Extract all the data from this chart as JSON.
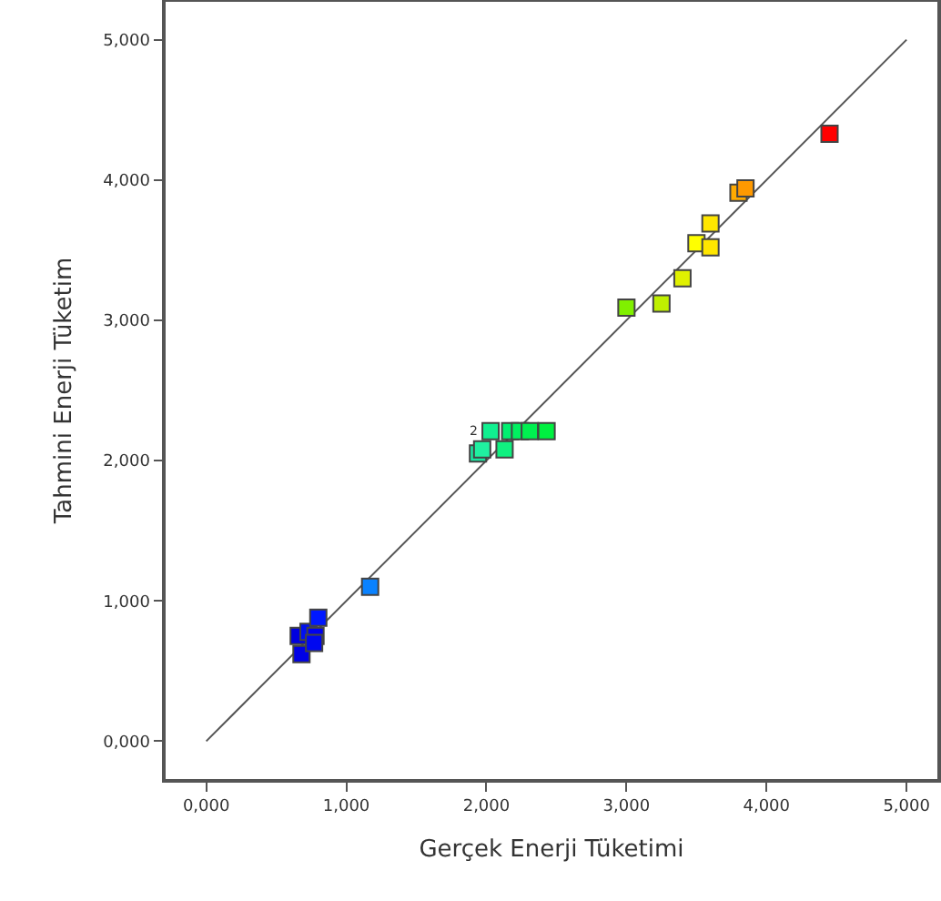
{
  "chart_data": {
    "type": "scatter",
    "xlabel": "Gerçek Enerji Tüketimi",
    "ylabel": "Tahmini Enerji Tüketim",
    "xlim": [
      -0.29,
      5.22
    ],
    "ylim": [
      -0.27,
      5.27
    ],
    "xticks": [
      {
        "value": 0,
        "label": "0,000"
      },
      {
        "value": 1,
        "label": "1,000"
      },
      {
        "value": 2,
        "label": "2,000"
      },
      {
        "value": 3,
        "label": "3,000"
      },
      {
        "value": 4,
        "label": "4,000"
      },
      {
        "value": 5,
        "label": "5,000"
      }
    ],
    "yticks": [
      {
        "value": 0,
        "label": "0,000"
      },
      {
        "value": 1,
        "label": "1,000"
      },
      {
        "value": 2,
        "label": "2,000"
      },
      {
        "value": 3,
        "label": "3,000"
      },
      {
        "value": 4,
        "label": "4,000"
      },
      {
        "value": 5,
        "label": "5,000"
      }
    ],
    "grid": false,
    "legend": false,
    "marker": "square",
    "series": [
      {
        "type": "line",
        "color": "#555555",
        "x": [
          0,
          5
        ],
        "values": [
          0,
          5
        ],
        "marker": "none",
        "line_style": "solid"
      },
      {
        "type": "scatter",
        "x": [
          0.66,
          0.68,
          0.73,
          0.78,
          0.77,
          0.8,
          1.17,
          1.94,
          1.97,
          2.03,
          2.13,
          2.17,
          2.24,
          2.31,
          2.43,
          3.0,
          3.25,
          3.4,
          3.5,
          3.6,
          3.6,
          3.8,
          3.85,
          4.45
        ],
        "values": [
          0.75,
          0.62,
          0.78,
          0.75,
          0.7,
          0.88,
          1.1,
          2.05,
          2.08,
          2.21,
          2.08,
          2.21,
          2.21,
          2.21,
          2.21,
          3.09,
          3.12,
          3.3,
          3.55,
          3.69,
          3.52,
          3.91,
          3.94,
          4.33
        ],
        "colors": [
          "#0000e0",
          "#0000e6",
          "#0010f0",
          "#0000f0",
          "#0008f0",
          "#0018ff",
          "#0a82ff",
          "#1ae6a0",
          "#20f0a0",
          "#10f090",
          "#10f080",
          "#00f070",
          "#00f060",
          "#00f050",
          "#00f040",
          "#80f000",
          "#bff000",
          "#e0f000",
          "#ffff00",
          "#ffe600",
          "#ffe600",
          "#ffaa00",
          "#ff9900",
          "#ff0000"
        ]
      }
    ],
    "annotations": [
      {
        "text": "2",
        "x": 2.03,
        "y": 2.21
      }
    ]
  }
}
